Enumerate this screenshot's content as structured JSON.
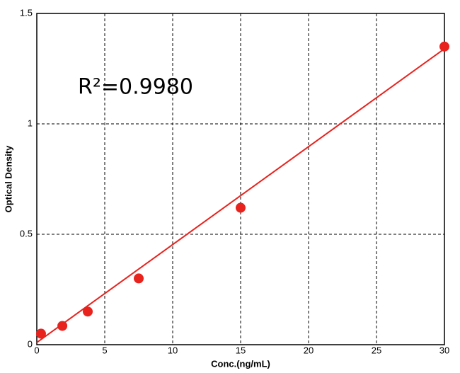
{
  "chart_data": {
    "type": "scatter",
    "xlabel": "Conc.(ng/mL)",
    "ylabel": "Optical Density",
    "annotation": "R²=0.9980",
    "x": [
      0.31,
      1.88,
      3.75,
      7.5,
      15,
      30
    ],
    "values": [
      0.05,
      0.085,
      0.15,
      0.3,
      0.62,
      1.35
    ],
    "color": "#e8231e",
    "fit_line": {
      "x": [
        0,
        30
      ],
      "y": [
        0.01,
        1.34
      ]
    },
    "xlim": [
      0,
      30
    ],
    "xticks": [
      0,
      5,
      10,
      15,
      20,
      25,
      30
    ],
    "ylim": [
      0,
      1.5
    ],
    "yticks": [
      0,
      0.5,
      1,
      1.5
    ],
    "grid": true
  }
}
